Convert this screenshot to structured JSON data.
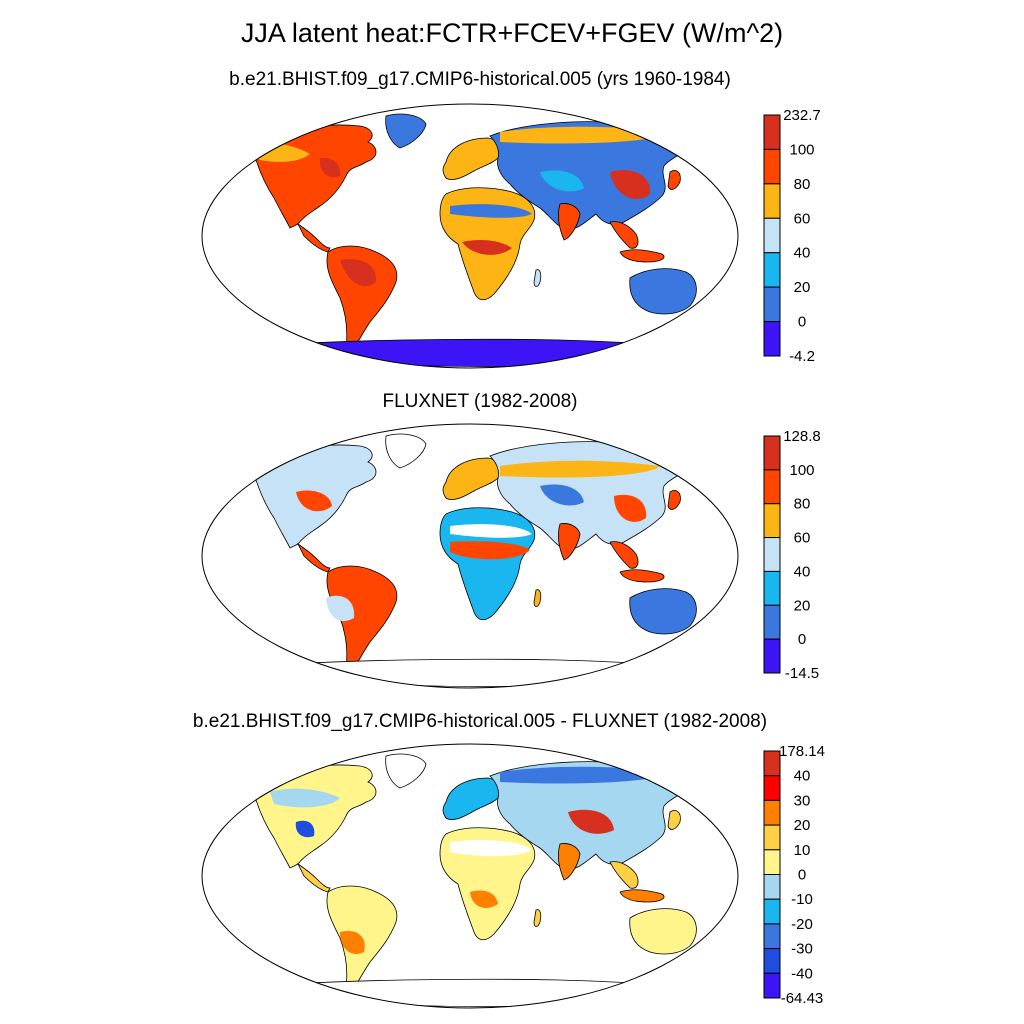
{
  "title": "JJA latent heat:FCTR+FCEV+FGEV (W/m^2)",
  "panels": [
    {
      "id": "model",
      "title": "b.e21.BHIST.f09_g17.CMIP6-historical.005 (yrs 1960-1984)",
      "colorbar": {
        "labels": [
          "232.7",
          "100",
          "80",
          "60",
          "40",
          "20",
          "0",
          "-4.2"
        ],
        "colors": [
          "#d7301f",
          "#ff4500",
          "#fdb515",
          "#c6e2f7",
          "#1ab6f0",
          "#3a78e0",
          "#3c14f5"
        ]
      }
    },
    {
      "id": "obs",
      "title": "FLUXNET (1982-2008)",
      "colorbar": {
        "labels": [
          "128.8",
          "100",
          "80",
          "60",
          "40",
          "20",
          "0",
          "-14.5"
        ],
        "colors": [
          "#d7301f",
          "#ff4500",
          "#fdb515",
          "#c6e2f7",
          "#1ab6f0",
          "#3a78e0",
          "#3c14f5"
        ]
      }
    },
    {
      "id": "diff",
      "title": "b.e21.BHIST.f09_g17.CMIP6-historical.005 - FLUXNET (1982-2008)",
      "colorbar": {
        "labels": [
          "178.14",
          "40",
          "30",
          "20",
          "10",
          "0",
          "-10",
          "-20",
          "-30",
          "-40",
          "-64.43"
        ],
        "colors": [
          "#d7301f",
          "#ff0000",
          "#ff7f00",
          "#ffd045",
          "#fff58a",
          "#a6d7f0",
          "#1ab6f0",
          "#3a78e0",
          "#1e4ee0",
          "#3c14f5"
        ]
      }
    }
  ]
}
